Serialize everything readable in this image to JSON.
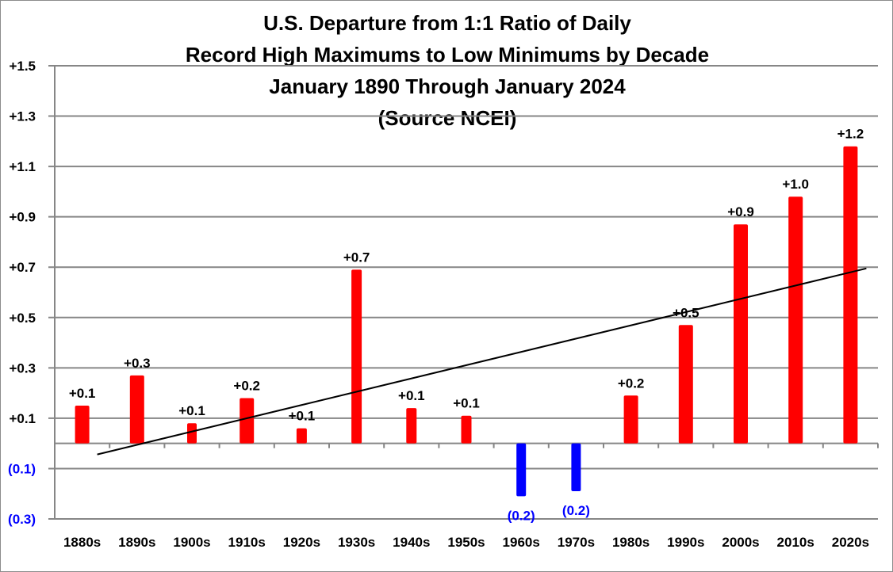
{
  "chart_data": {
    "type": "bar",
    "title": [
      "U.S. Departure from 1:1 Ratio of Daily",
      "Record High Maximums to Low Minimums by Decade",
      "January 1890 Through January 2024",
      "(Source NCEI)"
    ],
    "xlabel": "",
    "ylabel": "",
    "categories": [
      "1880s",
      "1890s",
      "1900s",
      "1910s",
      "1920s",
      "1930s",
      "1940s",
      "1950s",
      "1960s",
      "1970s",
      "1980s",
      "1990s",
      "2000s",
      "2010s",
      "2020s"
    ],
    "values": [
      0.15,
      0.27,
      0.08,
      0.18,
      0.06,
      0.69,
      0.14,
      0.11,
      -0.21,
      -0.19,
      0.19,
      0.47,
      0.87,
      0.98,
      1.18
    ],
    "data_labels": [
      "+0.1",
      "+0.3",
      "+0.1",
      "+0.2",
      "+0.1",
      "+0.7",
      "+0.1",
      "+0.1",
      "(0.2)",
      "(0.2)",
      "+0.2",
      "+0.5",
      "+0.9",
      "+1.0",
      "+1.2"
    ],
    "ylim": [
      -0.3,
      1.5
    ],
    "yticks": [
      1.5,
      1.3,
      1.1,
      0.9,
      0.7,
      0.5,
      0.3,
      0.1,
      -0.1,
      -0.3
    ],
    "ytick_labels": [
      "+1.5",
      "+1.3",
      "+1.1",
      "+0.9",
      "+0.7",
      "+0.5",
      "+0.3",
      "+0.1",
      "(0.1)",
      "(0.3)"
    ],
    "trendline": {
      "type": "linear",
      "start": -0.044,
      "end": 0.695,
      "color": "#000000"
    },
    "grid": true,
    "legend": "none",
    "colors": {
      "positive": "#ff0000",
      "negative": "#0000ff",
      "positive_label": "#000000",
      "negative_label": "#0000ff",
      "grid": "#868686"
    }
  }
}
